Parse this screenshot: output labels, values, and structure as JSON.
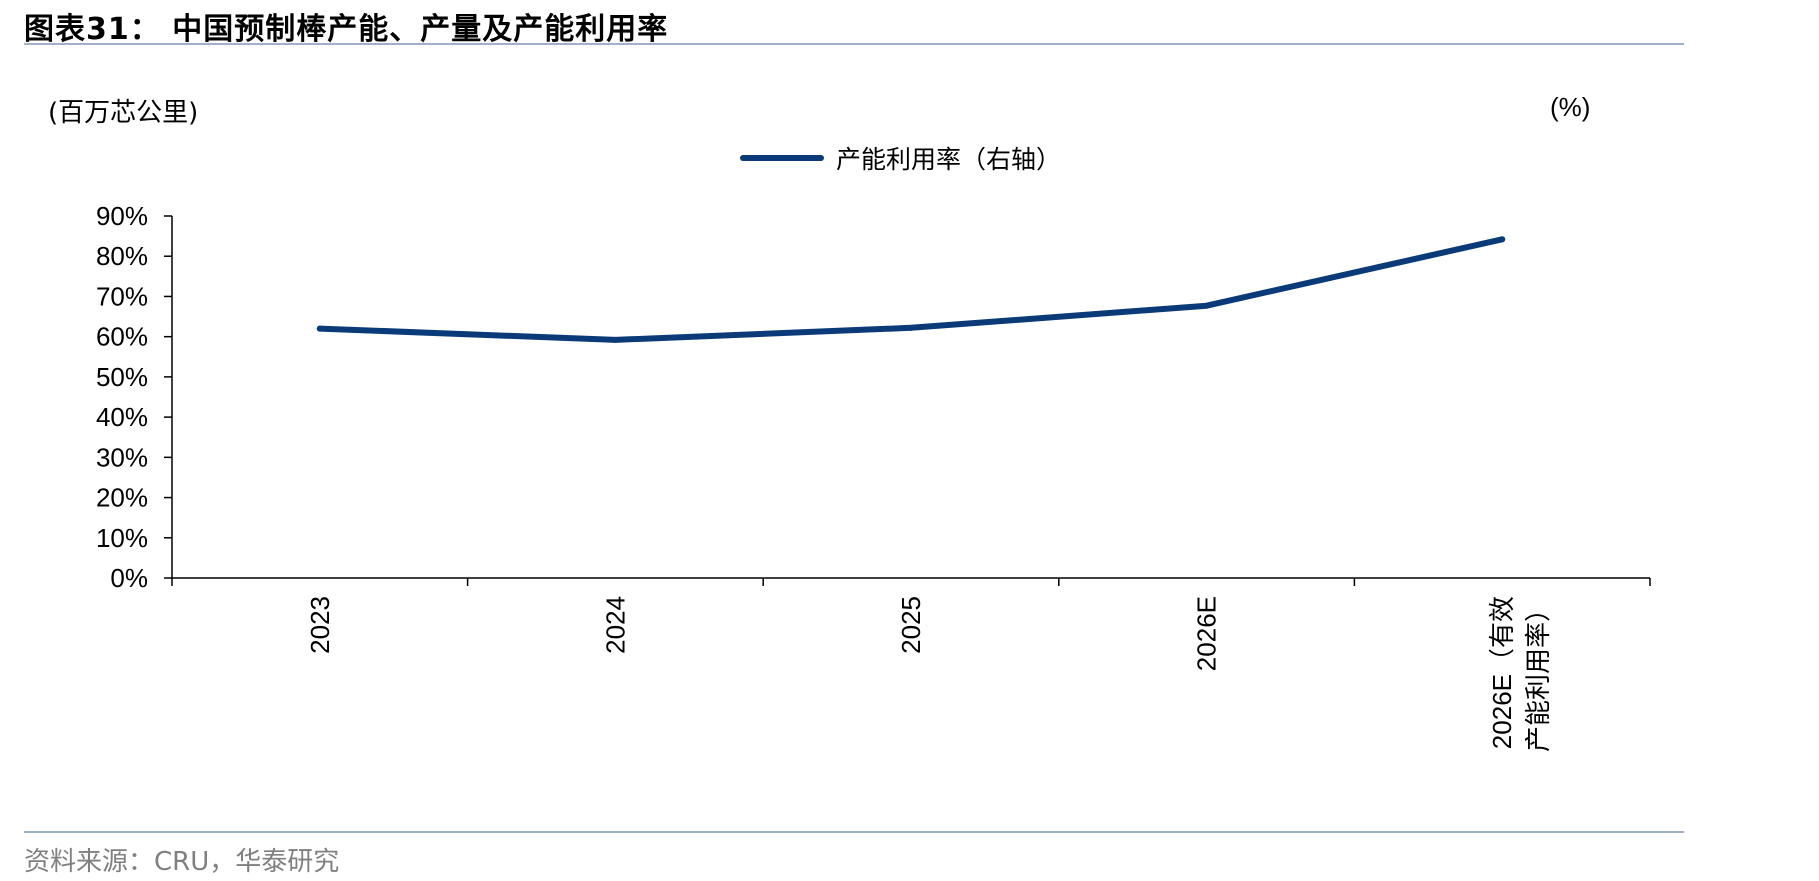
{
  "title": "图表31：  中国预制棒产能、产量及产能利用率",
  "left_unit": "(百万芯公里)",
  "right_unit": "(%)",
  "source": "资料来源：CRU，华泰研究",
  "colors": {
    "line": "#0a3a78",
    "rule": "#9fb1c4",
    "source_text": "#808080"
  },
  "chart_data": {
    "type": "line",
    "title": "",
    "xlabel": "",
    "ylabel": "",
    "categories": [
      "2023",
      "2024",
      "2025",
      "2026E",
      "2026E（有效产能利用率）"
    ],
    "series": [
      {
        "name": "产能利用率（右轴）",
        "axis": "right",
        "values": [
          62,
          59.2,
          62.2,
          67.7,
          84.2
        ],
        "color": "#0a3a78"
      }
    ],
    "ylim": [
      0,
      90
    ],
    "ytick_values": [
      0,
      10,
      20,
      30,
      40,
      50,
      60,
      70,
      80,
      90
    ],
    "ytick_labels": [
      "0%",
      "10%",
      "20%",
      "30%",
      "40%",
      "50%",
      "60%",
      "70%",
      "80%",
      "90%"
    ],
    "xtick_lines": [
      [
        "2023"
      ],
      [
        "2024"
      ],
      [
        "2025"
      ],
      [
        "2026E"
      ],
      [
        "2026E（有效",
        "产能利用率）"
      ]
    ],
    "grid": false,
    "legend_position": "top-center"
  }
}
